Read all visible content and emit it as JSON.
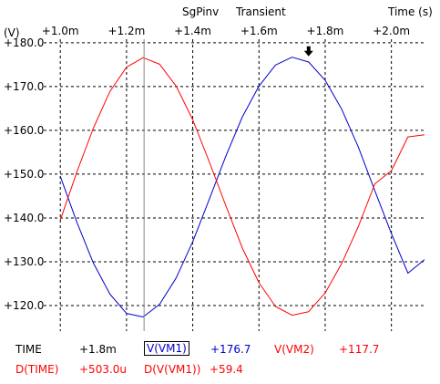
{
  "header": {
    "title": "SgPinv",
    "analysis": "Transient",
    "x_unit": "Time (s)",
    "y_unit": "(V)"
  },
  "chart_data": {
    "type": "line",
    "xlabel": "Time (s)",
    "ylabel": "(V)",
    "xlim": [
      0.0009967,
      0.0021
    ],
    "ylim": [
      117.5,
      180.8
    ],
    "x_ticks": [
      0.001,
      0.0012,
      0.0014,
      0.0016,
      0.0018,
      0.002
    ],
    "x_tick_labels": [
      "+1.0m",
      "+1.2m",
      "+1.4m",
      "+1.6m",
      "+1.8m",
      "+2.0m"
    ],
    "y_ticks": [
      120,
      130,
      140,
      150,
      160,
      170,
      180
    ],
    "y_tick_labels": [
      "+120.0",
      "+130.0",
      "+140.0",
      "+150.0",
      "+160.0",
      "+170.0",
      "+180.0"
    ],
    "grid": true,
    "series": [
      {
        "name": "V(VM1)",
        "color": "#0000cc",
        "x": [
          0.001,
          0.00105,
          0.0011,
          0.00115,
          0.0012,
          0.00125,
          0.0013,
          0.00135,
          0.0014,
          0.00145,
          0.0015,
          0.00155,
          0.0016,
          0.00165,
          0.0017,
          0.00175,
          0.0018,
          0.00185,
          0.0019,
          0.00195,
          0.002,
          0.00205,
          0.0021
        ],
        "y": [
          149.5,
          139.0,
          129.7,
          122.6,
          118.2,
          117.4,
          120.3,
          126.3,
          134.6,
          144.3,
          154.1,
          163.1,
          170.1,
          174.9,
          176.7,
          175.6,
          171.4,
          164.8,
          156.2,
          146.2,
          136.4,
          127.4,
          130.5
        ]
      },
      {
        "name": "V(VM2)",
        "color": "#ff0000",
        "x": [
          0.001,
          0.00105,
          0.0011,
          0.00115,
          0.0012,
          0.00125,
          0.0013,
          0.00135,
          0.0014,
          0.00145,
          0.0015,
          0.00155,
          0.0016,
          0.00165,
          0.0017,
          0.00175,
          0.0018,
          0.00185,
          0.0019,
          0.00195,
          0.002,
          0.00205,
          0.0021
        ],
        "y": [
          139.5,
          150.5,
          160.5,
          168.9,
          174.4,
          176.6,
          175.1,
          170.1,
          162.4,
          152.8,
          142.8,
          133.1,
          125.2,
          119.8,
          117.8,
          118.6,
          122.9,
          129.6,
          138.0,
          147.8,
          150.8,
          158.5,
          159.0
        ]
      }
    ],
    "cursor": {
      "x": 0.001253,
      "marker_x": 0.00175,
      "marker_y": 176.7
    }
  },
  "readout": {
    "time_label": "TIME",
    "time_value": "+1.8m",
    "s1_label": "V(VM1)",
    "s1_value": "+176.7",
    "s2_label": "V(VM2)",
    "s2_value": "+117.7",
    "dtime_label": "D(TIME)",
    "dtime_value": "+503.0u",
    "ds_label": "D(V(VM1))",
    "ds_value": "+59.4"
  }
}
